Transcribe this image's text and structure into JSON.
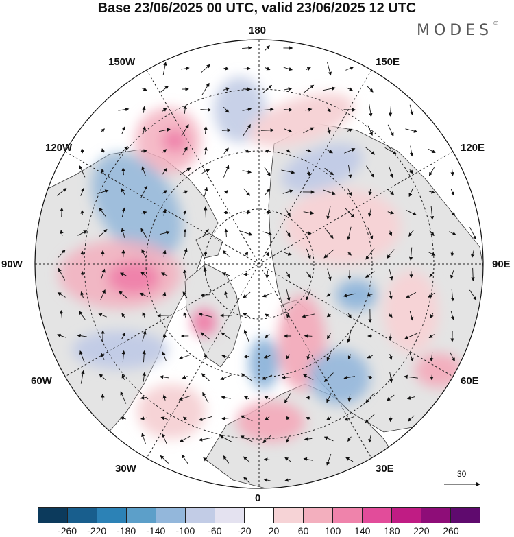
{
  "header": {
    "title": "Base 23/06/2025 00 UTC, valid 23/06/2025 12 UTC",
    "brand": "MODES",
    "brand_mark": "©"
  },
  "map": {
    "projection": "north-polar-stereographic",
    "longitude_labels": {
      "top": "180",
      "upper_left": "150W",
      "upper_right": "150E",
      "left_upper": "120W",
      "right_upper": "120E",
      "left": "90W",
      "right": "90E",
      "left_lower": "60W",
      "right_lower": "60E",
      "lower_left": "30W",
      "lower_right": "30E",
      "bottom": "0"
    },
    "wind_reference_value": "30",
    "colors": {
      "land": "#e4e4e4",
      "ocean": "#ffffff",
      "grid": "#222222"
    }
  },
  "colorbar": {
    "ticks": [
      "-260",
      "-220",
      "-180",
      "-140",
      "-100",
      "-60",
      "-20",
      "20",
      "60",
      "100",
      "140",
      "180",
      "220",
      "260"
    ],
    "colors": [
      "#0c3a5c",
      "#185e8d",
      "#2c82b6",
      "#5c9fc9",
      "#93b7db",
      "#c2cce6",
      "#e4e2f0",
      "#ffffff",
      "#f6d3d6",
      "#f3afbe",
      "#ef83ab",
      "#e24c9a",
      "#c01c84",
      "#8e0d78",
      "#5f0a6e"
    ]
  }
}
